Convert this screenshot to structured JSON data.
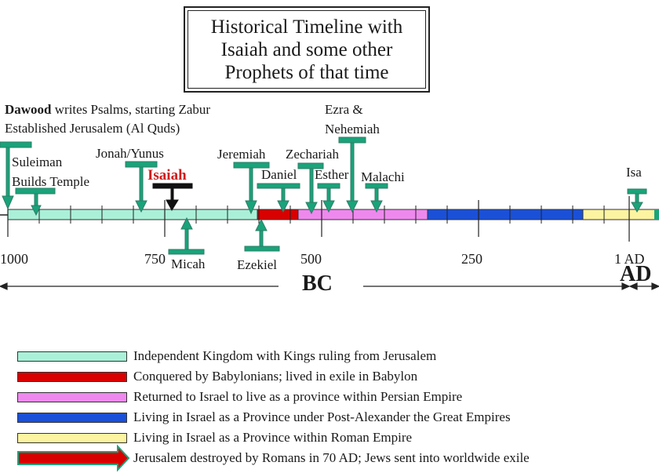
{
  "title": {
    "line1": "Historical Timeline with",
    "line2": "Isaiah and some other",
    "line3": "Prophets of that time"
  },
  "header_note": {
    "bold": "Dawood",
    "rest": " writes Psalms, starting Zabur",
    "line2": "Established Jerusalem (Al Quds)"
  },
  "labels": {
    "suleiman_1": "Suleiman",
    "suleiman_2": "Builds Temple",
    "jonah": "Jonah/Yunus",
    "isaiah": "Isaiah",
    "jeremiah": "Jeremiah",
    "zechariah": "Zechariah",
    "daniel": "Daniel",
    "esther": "Esther",
    "malachi": "Malachi",
    "ezra_1": "Ezra &",
    "ezra_2": "Nehemiah",
    "isa": "Isa",
    "micah": "Micah",
    "ezekiel": "Ezekiel"
  },
  "ticks": {
    "t1000": "1000",
    "t750": "750",
    "t500": "500",
    "t250": "250",
    "t1ad": "1 AD"
  },
  "eras": {
    "bc": "BC",
    "ad": "AD"
  },
  "legend": [
    {
      "text": "Independent Kingdom with Kings ruling from Jerusalem",
      "color": "#aaf0d8"
    },
    {
      "text": "Conquered by Babylonians; lived in exile in Babylon",
      "color": "#d90000"
    },
    {
      "text": "Returned to Israel to live as a province within Persian Empire",
      "color": "#ee88ee"
    },
    {
      "text": "Living in Israel as a Province under Post-Alexander the Great Empires",
      "color": "#1a50d8"
    },
    {
      "text": "Living in Israel as a Province within Roman Empire",
      "color": "#fcf4a0"
    },
    {
      "text": "Jerusalem destroyed by Romans in 70 AD; Jews sent into worldwide exile",
      "color": "#d90000"
    }
  ],
  "colors": {
    "marker": "#1aa37a",
    "marker_border": "#2e7d66"
  }
}
